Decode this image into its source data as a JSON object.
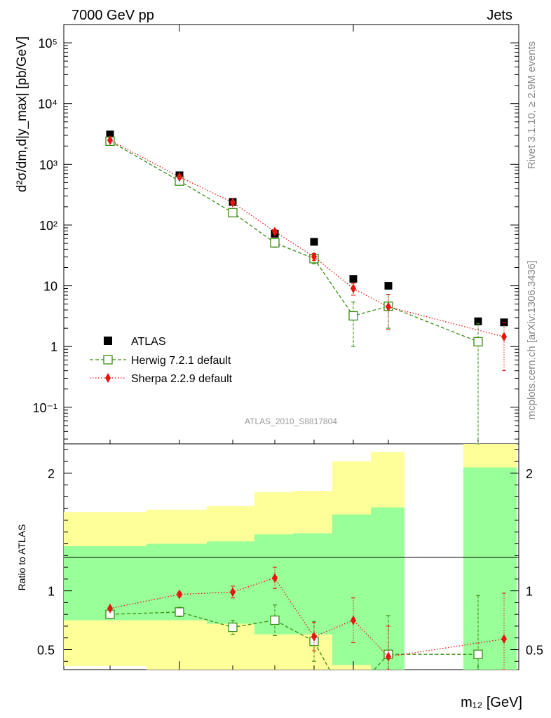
{
  "header": {
    "left": "7000 GeV pp",
    "right": "Jets"
  },
  "side_labels": {
    "rivet": "Rivet 3.1.10, ≥ 2.9M events",
    "mcplots": "mcplots.cern.ch [arXiv:1306.3436]"
  },
  "watermark": "ATLAS_2010_S8817804",
  "colors": {
    "atlas": "#000000",
    "herwig": "#3a8c14",
    "sherpa": "#e8140f",
    "band_inner": "#99ff99",
    "band_outer": "#ffff99"
  },
  "chart_data": [
    {
      "type": "scatter",
      "panel": "main",
      "ylabel": "d²σ/dm,d|y_max| [pb/GeV]",
      "yscale": "log",
      "ylim": [
        0.025,
        200000
      ],
      "y_tick_labels": [
        "10⁻¹",
        "1",
        "10",
        "10²",
        "10³",
        "10⁴",
        "10⁵"
      ],
      "legend_position": "lower-left",
      "series": [
        {
          "name": "ATLAS",
          "marker": "filled-square",
          "x_index": [
            0,
            1,
            2,
            3,
            4,
            5,
            6,
            7,
            8
          ],
          "y": [
            3100,
            660,
            240,
            72,
            53,
            13,
            10,
            2.6,
            2.5
          ]
        },
        {
          "name": "Herwig 7.2.1 default",
          "marker": "open-square",
          "line": "dashed",
          "x_index": [
            0,
            1,
            2,
            3,
            4,
            5,
            6,
            7
          ],
          "y": [
            2400,
            530,
            160,
            51,
            28,
            3.2,
            4.6,
            1.2
          ],
          "y_err": [
            0,
            0,
            0,
            8,
            5,
            2.2,
            2.6,
            1.2
          ]
        },
        {
          "name": "Sherpa 2.2.9 default",
          "marker": "filled-diamond",
          "line": "dotted",
          "x_index": [
            0,
            1,
            2,
            3,
            4,
            5,
            6,
            8
          ],
          "y": [
            2500,
            620,
            235,
            78,
            30,
            9.0,
            4.5,
            1.45
          ],
          "y_err": [
            0,
            0,
            0,
            6,
            4,
            2,
            2.6,
            1.05
          ]
        }
      ]
    },
    {
      "type": "scatter",
      "panel": "ratio",
      "ylabel": "Ratio to ATLAS",
      "xlabel": "m₁₂ [GeV]",
      "ylim": [
        0.33,
        2.25
      ],
      "y_ticks": [
        0.5,
        1,
        2
      ],
      "y_tick_labels": [
        "0.5",
        "1",
        "2"
      ],
      "bands": {
        "inner": {
          "lo": [
            0.75,
            0.75,
            0.72,
            0.63,
            0.63,
            0.37,
            0.33,
            0.33
          ],
          "hi": [
            1.38,
            1.4,
            1.42,
            1.48,
            1.49,
            1.65,
            1.71,
            2.05
          ]
        },
        "outer": {
          "lo": [
            0.36,
            0.33,
            0.33,
            0.33,
            0.33,
            0.33,
            0.33,
            0.33
          ],
          "hi": [
            1.67,
            1.69,
            1.72,
            1.84,
            1.85,
            2.1,
            2.18,
            2.25
          ]
        }
      },
      "series": [
        {
          "name": "Herwig 7.2.1 default",
          "x_index": [
            0,
            1,
            2,
            3,
            4,
            6,
            7
          ],
          "y": [
            0.8,
            0.82,
            0.69,
            0.75,
            0.57,
            0.46,
            0.46
          ],
          "y_err": [
            0.02,
            0.04,
            0.06,
            0.13,
            0.17,
            0.33,
            0.5
          ],
          "note": "point at x_index 5 lies below the axis range"
        },
        {
          "name": "Sherpa 2.2.9 default",
          "x_index": [
            0,
            1,
            2,
            3,
            4,
            5,
            6,
            8
          ],
          "y": [
            0.85,
            0.97,
            0.99,
            1.11,
            0.61,
            0.75,
            0.44,
            0.59
          ],
          "y_err": [
            0,
            0.02,
            0.05,
            0.09,
            0.12,
            0.19,
            0.26,
            0.39
          ]
        }
      ]
    }
  ]
}
